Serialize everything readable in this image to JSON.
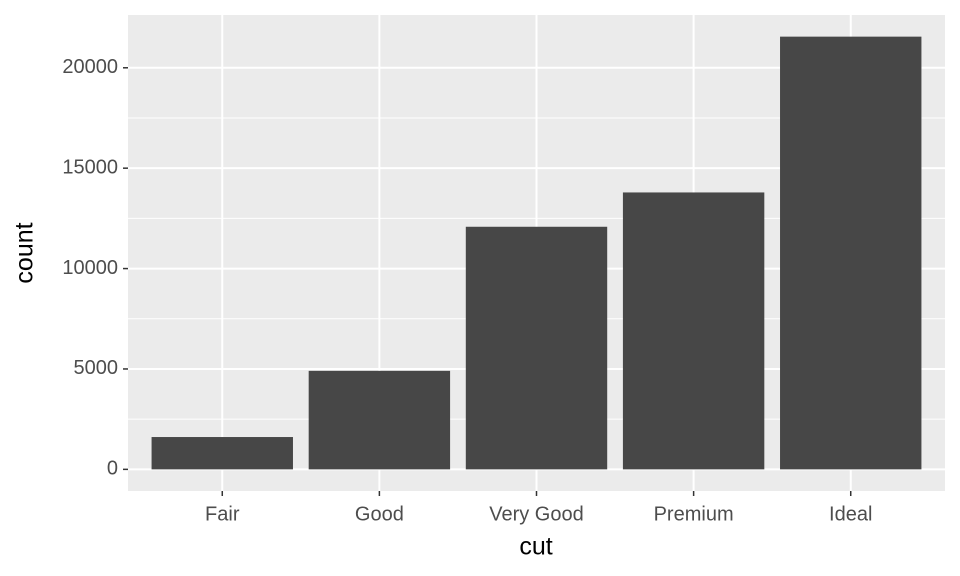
{
  "chart_data": {
    "type": "bar",
    "x_label": "cut",
    "y_label": "count",
    "categories": [
      "Fair",
      "Good",
      "Very Good",
      "Premium",
      "Ideal"
    ],
    "values": [
      1610,
      4906,
      12082,
      13791,
      21551
    ],
    "color": "#474747",
    "ylim": [
      -1078,
      22629
    ],
    "yticks": [
      0,
      5000,
      10000,
      15000,
      20000
    ],
    "grid": true
  }
}
